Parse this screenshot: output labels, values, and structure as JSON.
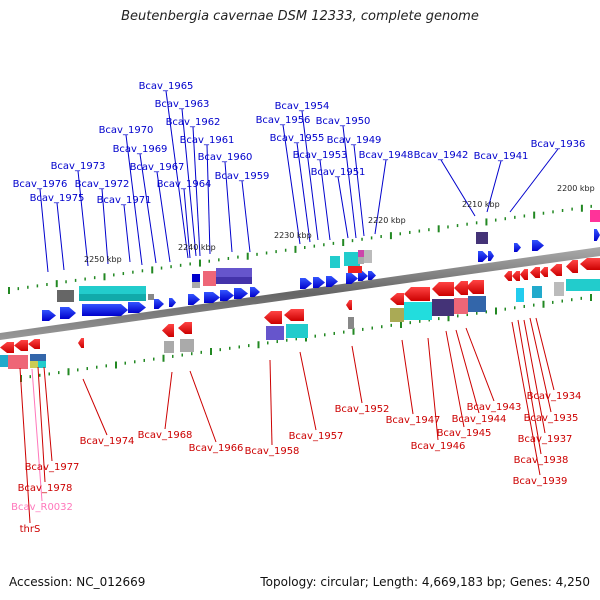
{
  "title": "Beutenbergia cavernae DSM 12333, complete genome",
  "footer": {
    "accession": "Accession: NC_012669",
    "summary": "Topology: circular; Length: 4,669,183 bp; Genes: 4,250"
  },
  "colors": {
    "top_label": "#0000cc",
    "bottom_label": "#cc0000",
    "rna_label": "#ff77bb",
    "fwd_gene": "#0000ee",
    "rev_gene": "#ee0000",
    "backbone": "#777777",
    "tick": "#228822"
  },
  "scale_labels": [
    "2250 kbp",
    "2240 kbp",
    "2230 kbp",
    "2220 kbp",
    "2210 kbp",
    "2200 kbp"
  ],
  "top_genes": [
    "Bcav_1976",
    "Bcav_1975",
    "Bcav_1973",
    "Bcav_1972",
    "Bcav_1971",
    "Bcav_1970",
    "Bcav_1969",
    "Bcav_1967",
    "Bcav_1965",
    "Bcav_1964",
    "Bcav_1963",
    "Bcav_1962",
    "Bcav_1961",
    "Bcav_1960",
    "Bcav_1959",
    "Bcav_1956",
    "Bcav_1955",
    "Bcav_1954",
    "Bcav_1953",
    "Bcav_1951",
    "Bcav_1950",
    "Bcav_1949",
    "Bcav_1948",
    "Bcav_1942",
    "Bcav_1941",
    "Bcav_1936"
  ],
  "bottom_genes": [
    "Bcav_1977",
    "Bcav_1978",
    "Bcav_R0032",
    "thrS",
    "Bcav_1974",
    "Bcav_1968",
    "Bcav_1966",
    "Bcav_1958",
    "Bcav_1957",
    "Bcav_1952",
    "Bcav_1947",
    "Bcav_1946",
    "Bcav_1945",
    "Bcav_1944",
    "Bcav_1943",
    "Bcav_1934",
    "Bcav_1935",
    "Bcav_1937",
    "Bcav_1938",
    "Bcav_1939"
  ]
}
